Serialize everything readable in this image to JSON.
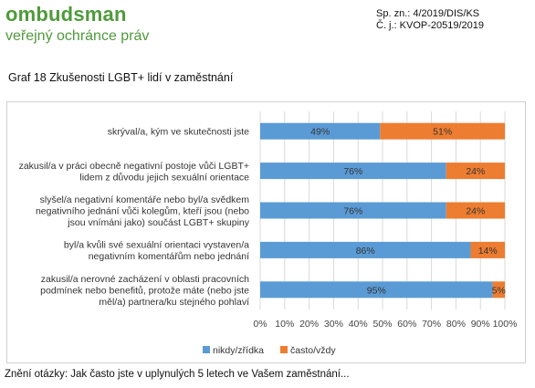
{
  "header": {
    "logo_main": "ombudsman",
    "logo_sub": "veřejný ochránce práv",
    "ref_line1": "Sp. zn.: 4/2019/DIS/KS",
    "ref_line2": "Č. j.: KVOP-20519/2019"
  },
  "figure_title": "Graf 18 Zkušenosti LGBT+ lidí v zaměstnání",
  "footnote": "Znění otázky: Jak často jste v uplynulých 5 letech ve Vašem zaměstnání...",
  "colors": {
    "series1": "#5b9bd5",
    "series2": "#ed7d31"
  },
  "chart_data": {
    "type": "bar",
    "orientation": "horizontal",
    "stacked": "percent",
    "categories": [
      [
        "skrýval/a, kým ve skutečnosti jste"
      ],
      [
        "zakusil/a v práci obecně negativní postoje vůči LGBT+",
        "lidem z důvodu jejich sexuální orientace"
      ],
      [
        "slyšel/a negativní komentáře nebo byl/a svědkem",
        "negativního jednání vůči kolegům, kteří jsou (nebo",
        "jsou vnímáni jako) součást LGBT+ skupiny"
      ],
      [
        "byl/a kvůli své sexuální orientaci vystaven/a",
        "negativním komentářům nebo jednání"
      ],
      [
        "zakusil/a nerovné zacházení v oblasti pracovních",
        "podmínek nebo benefitů, protože máte (nebo jste",
        "měl/a) partnera/ku stejného pohlaví"
      ]
    ],
    "series": [
      {
        "name": "nikdy/zřídka",
        "values": [
          49,
          76,
          76,
          86,
          95
        ]
      },
      {
        "name": "často/vždy",
        "values": [
          51,
          24,
          24,
          14,
          5
        ]
      }
    ],
    "xlim": [
      0,
      100
    ],
    "xticks": [
      "0%",
      "10%",
      "20%",
      "30%",
      "40%",
      "50%",
      "60%",
      "70%",
      "80%",
      "90%",
      "100%"
    ],
    "grid": true,
    "legend": "bottom"
  }
}
